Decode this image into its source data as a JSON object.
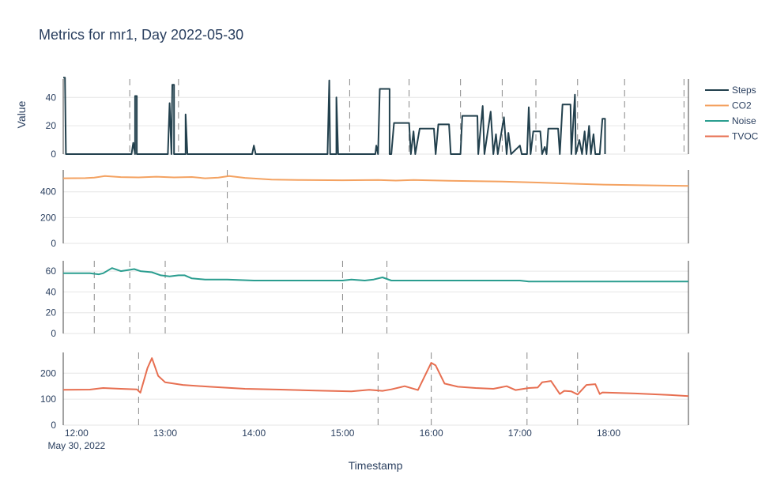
{
  "chart_data": {
    "type": "line",
    "title": "Metrics for mr1, Day 2022-05-30",
    "xlabel": "Timestamp",
    "ylabel": "Value",
    "x_range_hours": [
      11.85,
      18.9
    ],
    "x_ticks": [
      {
        "h": 12,
        "label": "12:00",
        "sublabel": "May 30, 2022"
      },
      {
        "h": 13,
        "label": "13:00"
      },
      {
        "h": 14,
        "label": "14:00"
      },
      {
        "h": 15,
        "label": "15:00"
      },
      {
        "h": 16,
        "label": "16:00"
      },
      {
        "h": 17,
        "label": "17:00"
      },
      {
        "h": 18,
        "label": "18:00"
      }
    ],
    "legend_position": "top-right",
    "subplots": [
      {
        "name": "Steps",
        "color": "#22404d",
        "ylim": [
          0,
          53
        ],
        "yticks": [
          0,
          20,
          40
        ],
        "markers": [
          12.6,
          13.15,
          15.08,
          15.75,
          16.33,
          16.8,
          17.18,
          17.65,
          18.18,
          18.85
        ],
        "points": [
          [
            11.85,
            54
          ],
          [
            11.87,
            54
          ],
          [
            11.88,
            0
          ],
          [
            12.62,
            0
          ],
          [
            12.64,
            8
          ],
          [
            12.66,
            0
          ],
          [
            12.66,
            41
          ],
          [
            12.68,
            41
          ],
          [
            12.68,
            0
          ],
          [
            13.03,
            0
          ],
          [
            13.05,
            36
          ],
          [
            13.07,
            0
          ],
          [
            13.08,
            49
          ],
          [
            13.1,
            49
          ],
          [
            13.1,
            0
          ],
          [
            13.23,
            0
          ],
          [
            13.23,
            28
          ],
          [
            13.25,
            0
          ],
          [
            13.98,
            0
          ],
          [
            14.0,
            6
          ],
          [
            14.02,
            0
          ],
          [
            14.83,
            0
          ],
          [
            14.85,
            52
          ],
          [
            14.86,
            0
          ],
          [
            14.93,
            0
          ],
          [
            14.93,
            40
          ],
          [
            14.95,
            0
          ],
          [
            15.37,
            0
          ],
          [
            15.38,
            6
          ],
          [
            15.4,
            0
          ],
          [
            15.42,
            46
          ],
          [
            15.53,
            46
          ],
          [
            15.53,
            0
          ],
          [
            15.55,
            0
          ],
          [
            15.58,
            22
          ],
          [
            15.75,
            22
          ],
          [
            15.77,
            0
          ],
          [
            15.8,
            16
          ],
          [
            15.82,
            0
          ],
          [
            15.87,
            18
          ],
          [
            16.03,
            18
          ],
          [
            16.05,
            0
          ],
          [
            16.08,
            21
          ],
          [
            16.2,
            21
          ],
          [
            16.22,
            0
          ],
          [
            16.33,
            0
          ],
          [
            16.35,
            27
          ],
          [
            16.52,
            27
          ],
          [
            16.53,
            0
          ],
          [
            16.58,
            34
          ],
          [
            16.6,
            0
          ],
          [
            16.67,
            30
          ],
          [
            16.7,
            0
          ],
          [
            16.73,
            14
          ],
          [
            16.75,
            0
          ],
          [
            16.82,
            26
          ],
          [
            16.85,
            0
          ],
          [
            16.87,
            15
          ],
          [
            16.9,
            0
          ],
          [
            17.0,
            6
          ],
          [
            17.02,
            0
          ],
          [
            17.08,
            0
          ],
          [
            17.1,
            33
          ],
          [
            17.12,
            0
          ],
          [
            17.15,
            16
          ],
          [
            17.23,
            16
          ],
          [
            17.25,
            0
          ],
          [
            17.28,
            5
          ],
          [
            17.3,
            0
          ],
          [
            17.32,
            18
          ],
          [
            17.43,
            18
          ],
          [
            17.45,
            0
          ],
          [
            17.48,
            35
          ],
          [
            17.57,
            35
          ],
          [
            17.58,
            0
          ],
          [
            17.62,
            42
          ],
          [
            17.63,
            0
          ],
          [
            17.67,
            10
          ],
          [
            17.7,
            0
          ],
          [
            17.73,
            16
          ],
          [
            17.75,
            0
          ],
          [
            17.78,
            20
          ],
          [
            17.8,
            0
          ],
          [
            17.83,
            14
          ],
          [
            17.85,
            0
          ],
          [
            17.9,
            0
          ],
          [
            17.93,
            25
          ],
          [
            17.96,
            25
          ],
          [
            17.96,
            0
          ]
        ]
      },
      {
        "name": "CO2",
        "color": "#f4a261",
        "ylim": [
          0,
          570
        ],
        "yticks": [
          0,
          200,
          400
        ],
        "markers": [
          13.7
        ],
        "points": [
          [
            11.85,
            505
          ],
          [
            12.1,
            506
          ],
          [
            12.2,
            510
          ],
          [
            12.32,
            522
          ],
          [
            12.5,
            514
          ],
          [
            12.7,
            512
          ],
          [
            12.9,
            517
          ],
          [
            13.1,
            512
          ],
          [
            13.3,
            515
          ],
          [
            13.45,
            505
          ],
          [
            13.6,
            510
          ],
          [
            13.72,
            522
          ],
          [
            13.9,
            508
          ],
          [
            14.2,
            495
          ],
          [
            14.5,
            492
          ],
          [
            15.0,
            490
          ],
          [
            15.4,
            492
          ],
          [
            15.6,
            487
          ],
          [
            15.8,
            492
          ],
          [
            16.2,
            486
          ],
          [
            16.8,
            480
          ],
          [
            17.2,
            472
          ],
          [
            17.6,
            463
          ],
          [
            18.0,
            455
          ],
          [
            18.5,
            450
          ],
          [
            18.9,
            446
          ]
        ]
      },
      {
        "name": "Noise",
        "color": "#2a9d8f",
        "ylim": [
          0,
          70
        ],
        "yticks": [
          0,
          20,
          40,
          60
        ],
        "markers": [
          12.2,
          12.6,
          13.0,
          15.0,
          15.5
        ],
        "points": [
          [
            11.85,
            58
          ],
          [
            12.05,
            58
          ],
          [
            12.15,
            58
          ],
          [
            12.25,
            57
          ],
          [
            12.3,
            58
          ],
          [
            12.4,
            63
          ],
          [
            12.5,
            60
          ],
          [
            12.58,
            61
          ],
          [
            12.65,
            62
          ],
          [
            12.72,
            60
          ],
          [
            12.85,
            59
          ],
          [
            12.95,
            56
          ],
          [
            13.05,
            55
          ],
          [
            13.15,
            56
          ],
          [
            13.22,
            56
          ],
          [
            13.3,
            53
          ],
          [
            13.45,
            52
          ],
          [
            13.7,
            52
          ],
          [
            14.0,
            51
          ],
          [
            14.5,
            51
          ],
          [
            15.0,
            51
          ],
          [
            15.1,
            52
          ],
          [
            15.25,
            51
          ],
          [
            15.35,
            52
          ],
          [
            15.45,
            54
          ],
          [
            15.55,
            51
          ],
          [
            15.65,
            51
          ],
          [
            16.0,
            51
          ],
          [
            16.8,
            51
          ],
          [
            17.0,
            51
          ],
          [
            17.1,
            50
          ],
          [
            18.0,
            50
          ],
          [
            18.9,
            50
          ]
        ]
      },
      {
        "name": "TVOC",
        "color": "#e76f51",
        "ylim": [
          0,
          280
        ],
        "yticks": [
          0,
          100,
          200
        ],
        "markers": [
          12.7,
          15.4,
          16.0,
          17.08,
          17.65
        ],
        "points": [
          [
            11.85,
            136
          ],
          [
            12.15,
            137
          ],
          [
            12.3,
            143
          ],
          [
            12.5,
            140
          ],
          [
            12.68,
            138
          ],
          [
            12.72,
            125
          ],
          [
            12.8,
            220
          ],
          [
            12.85,
            258
          ],
          [
            12.92,
            190
          ],
          [
            13.0,
            165
          ],
          [
            13.2,
            155
          ],
          [
            13.5,
            148
          ],
          [
            13.9,
            140
          ],
          [
            14.3,
            137
          ],
          [
            14.7,
            133
          ],
          [
            15.1,
            130
          ],
          [
            15.3,
            136
          ],
          [
            15.45,
            132
          ],
          [
            15.55,
            138
          ],
          [
            15.7,
            150
          ],
          [
            15.85,
            135
          ],
          [
            16.0,
            240
          ],
          [
            16.05,
            230
          ],
          [
            16.15,
            160
          ],
          [
            16.3,
            148
          ],
          [
            16.5,
            143
          ],
          [
            16.7,
            140
          ],
          [
            16.85,
            150
          ],
          [
            16.95,
            135
          ],
          [
            17.1,
            143
          ],
          [
            17.2,
            145
          ],
          [
            17.25,
            165
          ],
          [
            17.35,
            170
          ],
          [
            17.45,
            120
          ],
          [
            17.5,
            132
          ],
          [
            17.58,
            130
          ],
          [
            17.65,
            118
          ],
          [
            17.75,
            155
          ],
          [
            17.85,
            158
          ],
          [
            17.9,
            120
          ],
          [
            17.93,
            126
          ],
          [
            18.3,
            122
          ],
          [
            18.7,
            116
          ],
          [
            18.9,
            112
          ]
        ]
      }
    ]
  }
}
